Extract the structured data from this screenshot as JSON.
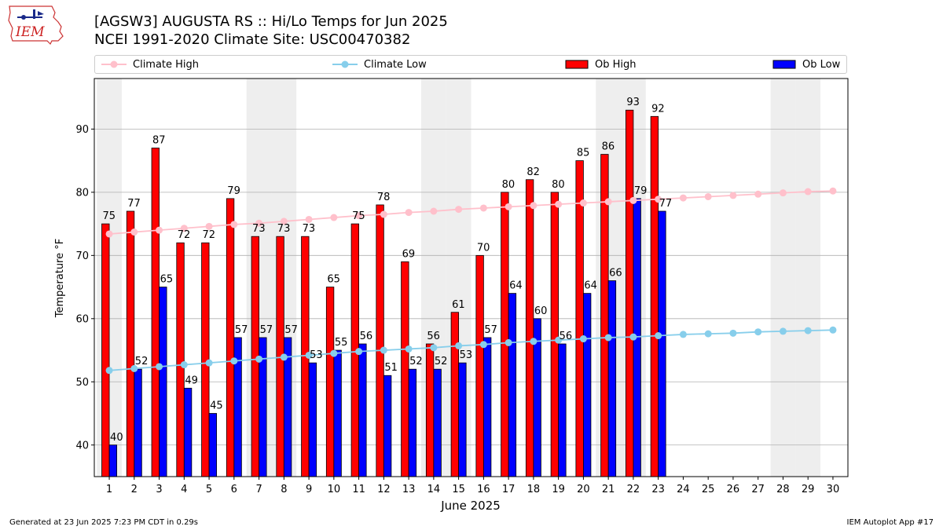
{
  "header": {
    "title": "[AGSW3] AUGUSTA RS :: Hi/Lo Temps for Jun 2025",
    "subtitle": "NCEI 1991-2020 Climate Site: USC00470382"
  },
  "logo": {
    "text": "IEM",
    "icon": "iem-iowa-logo-icon"
  },
  "footer": {
    "left": "Generated at 23 Jun 2025 7:23 PM CDT in 0.29s",
    "right": "IEM Autoplot App #17"
  },
  "colors": {
    "ob_high": "#ff0000",
    "ob_low": "#0000ff",
    "climate_high": "#ffc0cb",
    "climate_low": "#87ceeb",
    "weekend_shade": "#eeeeee",
    "grid": "#b0b0b0"
  },
  "chart_data": {
    "type": "bar",
    "title": "[AGSW3] AUGUSTA RS :: Hi/Lo Temps for Jun 2025",
    "subtitle": "NCEI 1991-2020 Climate Site: USC00470382",
    "xlabel": "June 2025",
    "ylabel": "Temperature °F",
    "ylim": [
      35,
      98
    ],
    "yticks": [
      40,
      50,
      60,
      70,
      80,
      90
    ],
    "grid": true,
    "legend_placement": "top",
    "categories": [
      "1",
      "2",
      "3",
      "4",
      "5",
      "6",
      "7",
      "8",
      "9",
      "10",
      "11",
      "12",
      "13",
      "14",
      "15",
      "16",
      "17",
      "18",
      "19",
      "20",
      "21",
      "22",
      "23",
      "24",
      "25",
      "26",
      "27",
      "28",
      "29",
      "30"
    ],
    "weekend_days": [
      1,
      7,
      8,
      14,
      15,
      21,
      22,
      28,
      29
    ],
    "series": [
      {
        "name": "Climate High",
        "kind": "line",
        "values": [
          73.4,
          73.7,
          74.0,
          74.3,
          74.6,
          74.9,
          75.1,
          75.4,
          75.7,
          76.0,
          76.3,
          76.5,
          76.8,
          77.0,
          77.3,
          77.5,
          77.7,
          77.9,
          78.1,
          78.3,
          78.5,
          78.7,
          78.9,
          79.1,
          79.3,
          79.5,
          79.7,
          79.9,
          80.1,
          80.2
        ]
      },
      {
        "name": "Climate Low",
        "kind": "line",
        "values": [
          51.8,
          52.1,
          52.4,
          52.7,
          53.0,
          53.3,
          53.6,
          53.9,
          54.2,
          54.5,
          54.8,
          55.0,
          55.2,
          55.4,
          55.7,
          55.9,
          56.2,
          56.4,
          56.6,
          56.8,
          57.0,
          57.1,
          57.3,
          57.5,
          57.6,
          57.7,
          57.9,
          58.0,
          58.1,
          58.2
        ]
      },
      {
        "name": "Ob High",
        "kind": "bar",
        "values": [
          75,
          77,
          87,
          72,
          72,
          79,
          73,
          73,
          73,
          65,
          75,
          78,
          69,
          56,
          61,
          70,
          80,
          82,
          80,
          85,
          86,
          93,
          92,
          null,
          null,
          null,
          null,
          null,
          null,
          null
        ]
      },
      {
        "name": "Ob Low",
        "kind": "bar",
        "values": [
          40,
          52,
          65,
          49,
          45,
          57,
          57,
          57,
          53,
          55,
          56,
          51,
          52,
          52,
          53,
          57,
          64,
          60,
          56,
          64,
          66,
          79,
          77,
          null,
          null,
          null,
          null,
          null,
          null,
          null
        ]
      }
    ]
  }
}
